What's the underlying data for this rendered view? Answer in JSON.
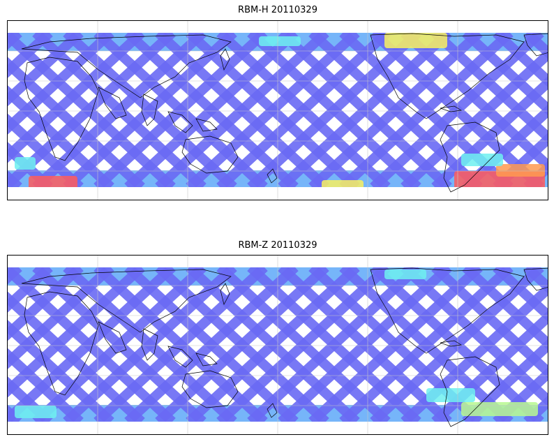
{
  "panels": [
    {
      "title": "RBM-H 20110329",
      "swath_color": "#6a6af4",
      "high_colors": [
        "#5ea8f8",
        "#6ff0f0",
        "#f8f060",
        "#ff9a50",
        "#ff5c5c"
      ]
    },
    {
      "title": "RBM-Z 20110329",
      "swath_color": "#6a6af4",
      "high_colors": [
        "#5ea8f8",
        "#6ff0f0",
        "#b8f890"
      ]
    }
  ],
  "map": {
    "projection": "equirectangular",
    "coastlines": true,
    "grid": true,
    "colormap": "jet"
  }
}
